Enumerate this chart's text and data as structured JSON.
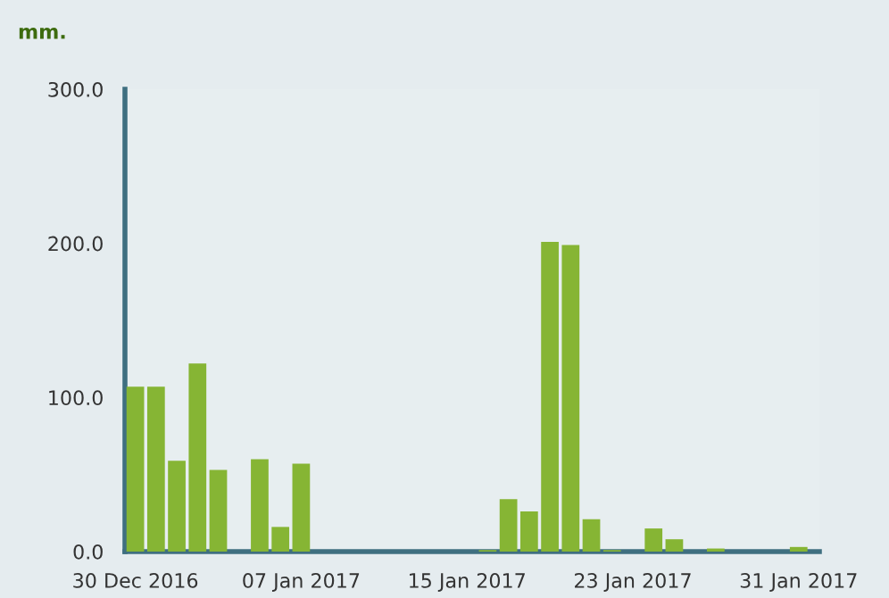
{
  "chart_data": {
    "type": "bar",
    "title": "mm.",
    "x": [
      "2016-12-30",
      "2016-12-31",
      "2017-01-01",
      "2017-01-02",
      "2017-01-03",
      "2017-01-04",
      "2017-01-05",
      "2017-01-06",
      "2017-01-07",
      "2017-01-08",
      "2017-01-09",
      "2017-01-10",
      "2017-01-11",
      "2017-01-12",
      "2017-01-13",
      "2017-01-14",
      "2017-01-15",
      "2017-01-16",
      "2017-01-17",
      "2017-01-18",
      "2017-01-19",
      "2017-01-20",
      "2017-01-21",
      "2017-01-22",
      "2017-01-23",
      "2017-01-24",
      "2017-01-25",
      "2017-01-26",
      "2017-01-27",
      "2017-01-28",
      "2017-01-29",
      "2017-01-30",
      "2017-01-31"
    ],
    "values": [
      107,
      107,
      59,
      122,
      53,
      0,
      60,
      16,
      57,
      0,
      0,
      0,
      0,
      0,
      0,
      0,
      0,
      1,
      34,
      26,
      201,
      199,
      21,
      1,
      0,
      15,
      8,
      0,
      2,
      0,
      0,
      0,
      3
    ],
    "color": "#86b534",
    "xlim": [
      "2016-12-29T12:00",
      "2017-02-01"
    ],
    "xticks": [
      {
        "value": "2016-12-30",
        "label": "30 Dec 2016"
      },
      {
        "value": "2017-01-07",
        "label": "07 Jan 2017"
      },
      {
        "value": "2017-01-15",
        "label": "15 Jan 2017"
      },
      {
        "value": "2017-01-23",
        "label": "23 Jan 2017"
      },
      {
        "value": "2017-01-31",
        "label": "31 Jan 2017"
      }
    ],
    "ylim": [
      0,
      300
    ],
    "yticks": [
      {
        "value": 0,
        "label": "0.0"
      },
      {
        "value": 100,
        "label": "100.0"
      },
      {
        "value": 200,
        "label": "200.0"
      },
      {
        "value": 300,
        "label": "300.0"
      }
    ],
    "grid": false,
    "legend": false
  }
}
